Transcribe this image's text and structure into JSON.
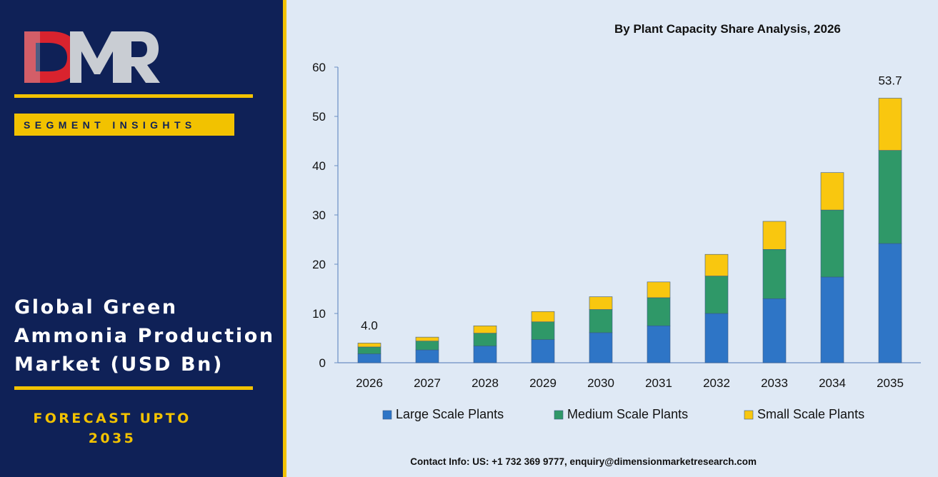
{
  "brand": {
    "logo_text": "DMR",
    "segment_label": "SEGMENT INSIGHTS",
    "market_title_lines": [
      "Global Green",
      "Ammonia Production",
      "Market (USD Bn)"
    ],
    "forecast_lines": [
      "FORECAST UPTO",
      "2035"
    ]
  },
  "colors": {
    "panel_navy": "#0f2157",
    "accent_gold": "#f2c200",
    "chart_bg": "#dfe9f5",
    "logo_red": "#d9232e",
    "logo_grey": "#c9cdd3"
  },
  "footer": {
    "contact": "Contact Info: US: +1 732 369 9777, enquiry@dimensionmarketresearch.com"
  },
  "chart_data": {
    "type": "bar",
    "stacked": true,
    "title": "By Plant Capacity Share Analysis, 2026",
    "categories": [
      "2026",
      "2027",
      "2028",
      "2029",
      "2030",
      "2031",
      "2032",
      "2033",
      "2034",
      "2035"
    ],
    "series": [
      {
        "name": "Large Scale Plants",
        "color": "#2e75c6",
        "values": [
          1.8,
          2.6,
          3.4,
          4.7,
          6.1,
          7.5,
          10.0,
          13.0,
          17.4,
          24.2
        ]
      },
      {
        "name": "Medium Scale Plants",
        "color": "#2f9868",
        "values": [
          1.4,
          1.8,
          2.6,
          3.6,
          4.7,
          5.7,
          7.6,
          10.0,
          13.6,
          18.9
        ]
      },
      {
        "name": "Small Scale Plants",
        "color": "#f9c70f",
        "values": [
          0.8,
          0.8,
          1.5,
          2.1,
          2.6,
          3.2,
          4.4,
          5.7,
          7.6,
          10.6
        ]
      }
    ],
    "data_labels": [
      {
        "category": "2026",
        "text": "4.0"
      },
      {
        "category": "2035",
        "text": "53.7"
      }
    ],
    "ylim": [
      0,
      60
    ],
    "yticks": [
      0,
      10,
      20,
      30,
      40,
      50,
      60
    ],
    "xlabel": "",
    "ylabel": "",
    "grid": false,
    "legend": "bottom"
  }
}
